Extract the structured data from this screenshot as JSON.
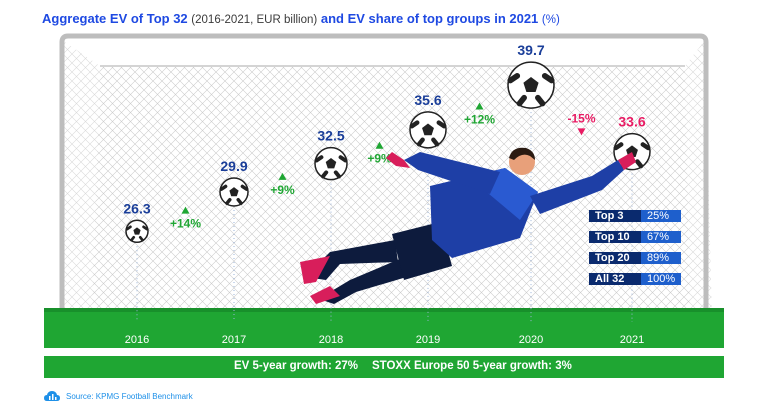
{
  "title": {
    "part1": "Aggregate EV of Top 32",
    "part2": "(2016-2021, EUR billion)",
    "part3": "and EV share of top groups in 2021",
    "part4": "(%)"
  },
  "colors": {
    "title_blue": "#1e49e2",
    "value_blue": "#1a3e99",
    "value_pink": "#e81b63",
    "growth_green": "#1fa633",
    "field_green": "#1fa633",
    "legend_dark": "#0a2a6e",
    "legend_light": "#1e5fcc"
  },
  "chart_data": {
    "type": "infographic",
    "categories": [
      "2016",
      "2017",
      "2018",
      "2019",
      "2020",
      "2021"
    ],
    "values": [
      26.3,
      29.9,
      32.5,
      35.6,
      39.7,
      33.6
    ],
    "value_labels": [
      "26.3",
      "29.9",
      "32.5",
      "35.6",
      "39.7",
      "33.6"
    ],
    "growth_labels": [
      "+14%",
      "+9%",
      "+9%",
      "+12%",
      "-15%"
    ],
    "growth_direction": [
      "up",
      "up",
      "up",
      "up",
      "down"
    ],
    "ylim": [
      20,
      42
    ]
  },
  "ev_share": [
    {
      "label": "Top 3",
      "value": "25%"
    },
    {
      "label": "Top 10",
      "value": "67%"
    },
    {
      "label": "Top 20",
      "value": "89%"
    },
    {
      "label": "All 32",
      "value": "100%"
    }
  ],
  "footer": {
    "ev_growth": "EV 5-year growth: 27%",
    "stoxx_growth": "STOXX Europe 50 5-year growth: 3%",
    "source": "Source: KPMG Football Benchmark"
  }
}
